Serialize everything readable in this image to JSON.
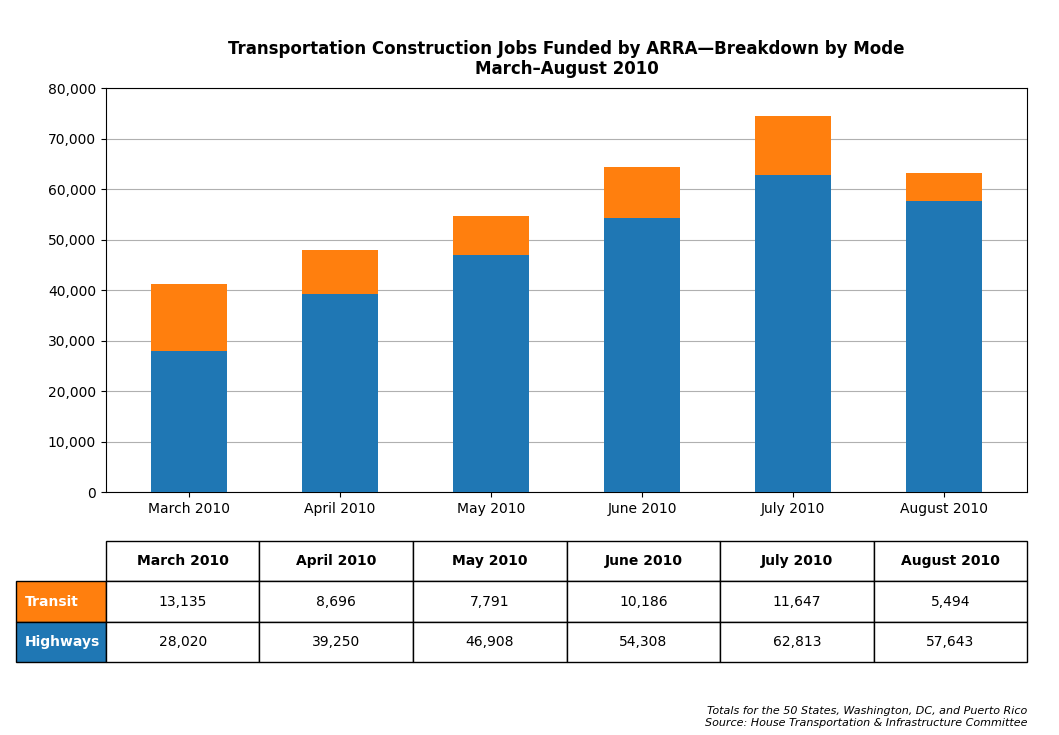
{
  "chart_data": {
    "type": "bar",
    "title": "Transportation Construction Jobs Funded by ARRA—Breakdown by Mode",
    "subtitle": "March–August 2010",
    "categories": [
      "March 2010",
      "April 2010",
      "May 2010",
      "June 2010",
      "July 2010",
      "August 2010"
    ],
    "series": [
      {
        "name": "Highways",
        "values": [
          28020,
          39250,
          46908,
          54308,
          62813,
          57643
        ],
        "value_labels": [
          "28,020",
          "39,250",
          "46,908",
          "54,308",
          "62,813",
          "57,643"
        ]
      },
      {
        "name": "Transit",
        "values": [
          13135,
          8696,
          7791,
          10186,
          11647,
          5494
        ],
        "value_labels": [
          "13,135",
          "8,696",
          "7,791",
          "10,186",
          "11,647",
          "5,494"
        ]
      }
    ],
    "stacked": true,
    "ylim": [
      0,
      80000
    ],
    "yticks": [
      0,
      {
        "value": 10000,
        "label": "10,000"
      },
      {
        "value": 20000,
        "label": "20,000"
      },
      {
        "value": 30000,
        "label": "30,000"
      },
      {
        "value": 40000,
        "label": "40,000"
      },
      {
        "value": 50000,
        "label": "50,000"
      },
      {
        "value": 60000,
        "label": "60,000"
      },
      {
        "value": 70000,
        "label": "70,000"
      },
      {
        "value": 80000,
        "label": "80,000"
      }
    ],
    "grid": true,
    "annotations": [
      "Totals for the 50 States, Washington, DC, and Puerto Rico",
      "Source: House Transportation & Infrastructure Committee"
    ]
  }
}
